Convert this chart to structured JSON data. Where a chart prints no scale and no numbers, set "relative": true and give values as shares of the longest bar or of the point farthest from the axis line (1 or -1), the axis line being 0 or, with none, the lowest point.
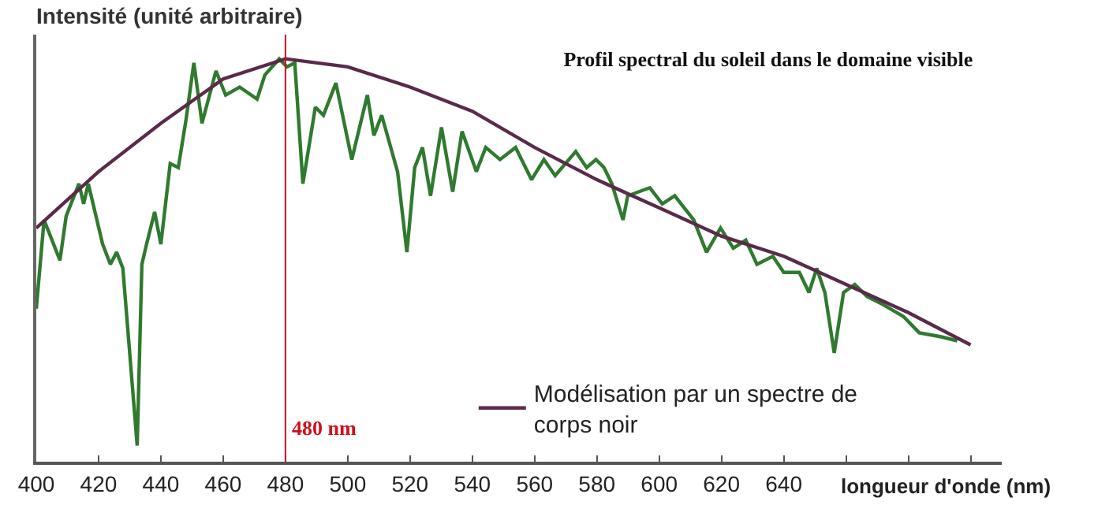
{
  "chart_data": {
    "type": "line",
    "title": "Profil spectral du soleil dans le domaine visible",
    "xlabel": "longueur d'onde (nm)",
    "ylabel": "Intensité (unité arbitraire)",
    "relative": true,
    "xlim": [
      400,
      710
    ],
    "xticks": [
      400,
      420,
      440,
      460,
      480,
      500,
      520,
      540,
      560,
      580,
      600,
      620,
      640,
      {
        "value": 660,
        "label": null
      },
      {
        "value": 680,
        "label": null
      },
      {
        "value": 700,
        "label": null
      }
    ],
    "series": [
      {
        "color": "#2f7a2f",
        "x": [
          400,
          402.5,
          407.6,
          409.6,
          413.7,
          415.2,
          416.7,
          421.3,
          423.8,
          425.8,
          427.8,
          432.4,
          433.9,
          435.4,
          438,
          440,
          443,
          445.6,
          448.1,
          450.6,
          453.2,
          457.7,
          460.8,
          465.3,
          470.9,
          473.4,
          478,
          480.5,
          483,
          485.6,
          489.6,
          492.2,
          496.2,
          501.3,
          506.3,
          508.4,
          510.9,
          516,
          519,
          521.5,
          524,
          526.6,
          530.1,
          533.7,
          536.7,
          541.3,
          544.3,
          548.9,
          553.9,
          559,
          563,
          566.6,
          573.2,
          576.7,
          579.7,
          582.3,
          584.8,
          588.4,
          589.9,
          597,
          601,
          605,
          611.1,
          615.2,
          619.7,
          623.8,
          627.8,
          631.4,
          636.5,
          640,
          645,
          648.1,
          650.6,
          653.2,
          656.2,
          659.2,
          662.8,
          666.8,
          671.9,
          678.5,
          683.5,
          690.6,
          695.7
        ],
        "values": [
          0.38,
          0.6,
          0.5,
          0.61,
          0.69,
          0.64,
          0.69,
          0.54,
          0.49,
          0.52,
          0.48,
          0.04,
          0.49,
          0.54,
          0.62,
          0.54,
          0.74,
          0.73,
          0.85,
          0.99,
          0.84,
          0.97,
          0.91,
          0.93,
          0.9,
          0.96,
          1.0,
          0.98,
          0.99,
          0.69,
          0.88,
          0.86,
          0.94,
          0.75,
          0.91,
          0.81,
          0.86,
          0.72,
          0.52,
          0.73,
          0.78,
          0.66,
          0.83,
          0.67,
          0.82,
          0.72,
          0.78,
          0.75,
          0.78,
          0.7,
          0.75,
          0.71,
          0.77,
          0.73,
          0.75,
          0.73,
          0.69,
          0.6,
          0.66,
          0.68,
          0.64,
          0.66,
          0.6,
          0.52,
          0.58,
          0.53,
          0.55,
          0.49,
          0.51,
          0.47,
          0.47,
          0.42,
          0.48,
          0.42,
          0.27,
          0.42,
          0.44,
          0.41,
          0.39,
          0.36,
          0.32,
          0.31,
          0.3
        ]
      },
      {
        "name": "Modélisation par un spectre de corps noir",
        "color": "#5a2a4a",
        "x": [
          400,
          420,
          440,
          460,
          480,
          500,
          520,
          540,
          560,
          580,
          600,
          620,
          640,
          660,
          680,
          700
        ],
        "values": [
          0.58,
          0.72,
          0.84,
          0.95,
          1.0,
          0.98,
          0.93,
          0.87,
          0.78,
          0.7,
          0.63,
          0.56,
          0.51,
          0.44,
          0.37,
          0.29
        ]
      }
    ],
    "ref_lines": [
      {
        "axis": "x",
        "value": 480,
        "label": "480 nm",
        "color": "#d0101a"
      }
    ],
    "legend": "bottom right",
    "grid": false,
    "marker": "none",
    "line_style": "solid"
  }
}
